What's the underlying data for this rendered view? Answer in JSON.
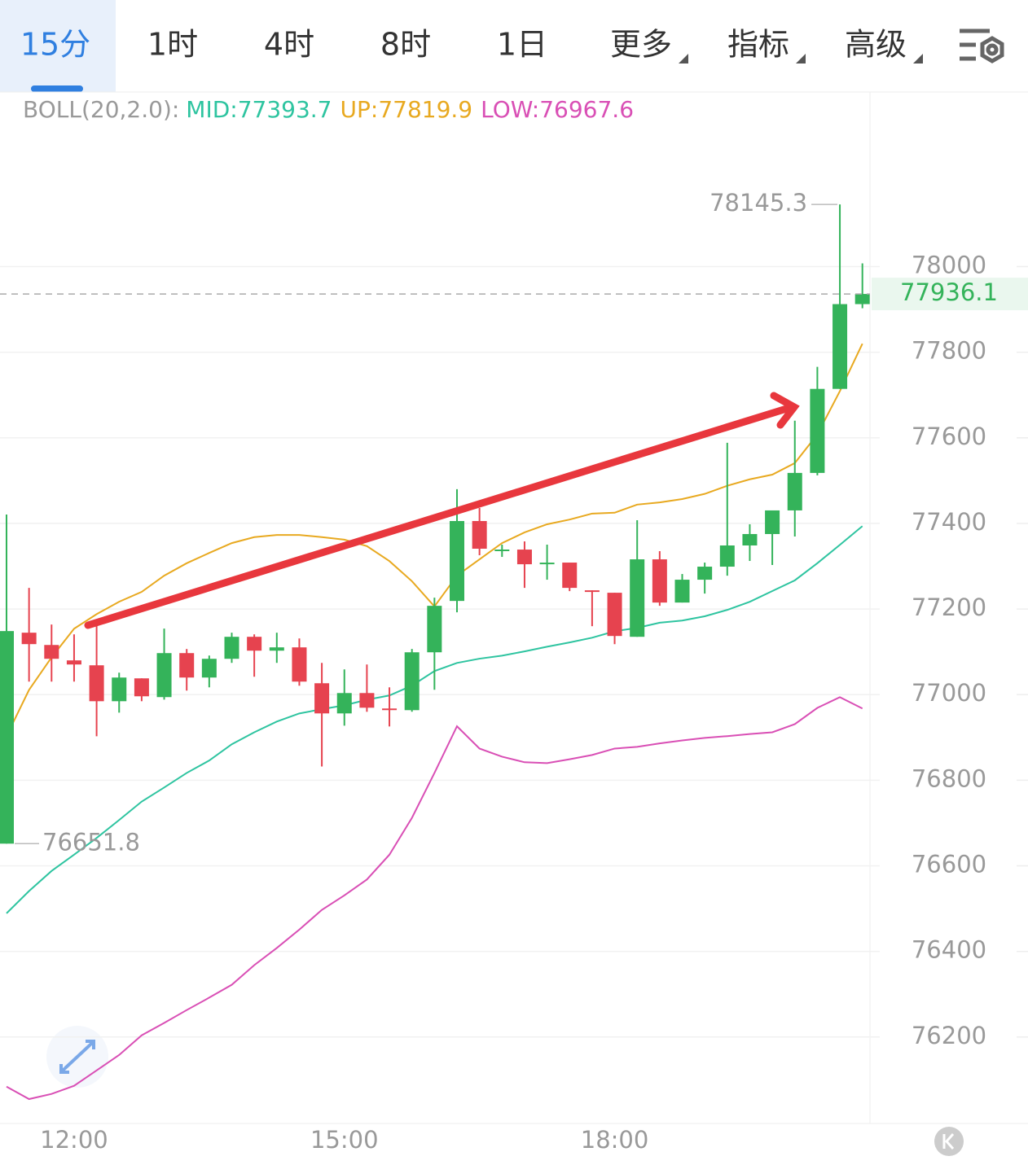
{
  "tabs": [
    "15分",
    "1时",
    "4时",
    "8时",
    "1日",
    "更多",
    "指标",
    "高级"
  ],
  "chart_data": {
    "type": "candlestick",
    "indicator_label": "BOLL(20,2.0):",
    "categories": [
      null,
      null,
      null,
      "12:00",
      null,
      null,
      null,
      null,
      null,
      null,
      null,
      null,
      null,
      null,
      null,
      "15:00",
      null,
      null,
      null,
      null,
      null,
      null,
      null,
      null,
      null,
      null,
      null,
      "18:00",
      null,
      null,
      null,
      null,
      null,
      null,
      null,
      null,
      null,
      null,
      null
    ],
    "open": [
      76651.8,
      77144.7,
      77116.0,
      77080.0,
      77068.5,
      76984.6,
      77038.0,
      76994.2,
      77097.0,
      77039.9,
      77083.7,
      77135.1,
      77102.7,
      77110.4,
      77026.6,
      76956.1,
      77003.7,
      76967.6,
      76963.7,
      77098.9,
      77218.9,
      77405.6,
      77337.0,
      77338.9,
      77306.5,
      77308.5,
      77243.7,
      77238.0,
      77135.1,
      77316.1,
      77215.1,
      77268.5,
      77299.0,
      77348.5,
      77375.2,
      77430.4,
      77518.0,
      77714.3,
      77912.4
    ],
    "high": [
      77420.9,
      77249.4,
      77163.7,
      77140.8,
      77163.7,
      77051.3,
      77038.0,
      77154.2,
      77106.6,
      77091.3,
      77144.7,
      77140.8,
      77144.7,
      77131.3,
      77074.2,
      77058.9,
      77070.4,
      77017.0,
      77106.6,
      77226.6,
      77479.9,
      77436.1,
      77350.4,
      77358.0,
      77350.4,
      77308.5,
      77243.7,
      77238.0,
      77407.5,
      77335.2,
      77281.8,
      77308.5,
      77588.5,
      77398.0,
      77430.4,
      77640.0,
      77765.7,
      78145.3,
      78007.6
    ],
    "low": [
      76651.8,
      77030.4,
      77030.4,
      77030.4,
      76902.7,
      76957.9,
      76984.6,
      76988.4,
      77009.4,
      77017.0,
      77074.2,
      77041.8,
      77074.2,
      77020.8,
      76832.2,
      76927.5,
      76959.9,
      76925.6,
      76959.9,
      77011.3,
      77192.3,
      77325.6,
      77321.8,
      77249.4,
      77268.5,
      77241.8,
      77159.9,
      77117.9,
      77135.1,
      77207.5,
      77215.1,
      77236.1,
      77278.0,
      77312.3,
      77302.8,
      77369.4,
      77512.3,
      77714.3,
      77902.8
    ],
    "close": [
      77148.5,
      77118.0,
      77083.7,
      77070.4,
      76984.6,
      77039.9,
      76996.1,
      77097.0,
      77039.9,
      77083.7,
      77135.1,
      77102.7,
      77110.4,
      77030.4,
      76956.1,
      77003.7,
      76969.4,
      76965.7,
      77098.9,
      77207.5,
      77405.6,
      77340.9,
      77339.0,
      77304.6,
      77308.4,
      77249.4,
      77239.9,
      77137.0,
      77316.1,
      77215.1,
      77268.5,
      77299.0,
      77348.5,
      77375.2,
      77430.4,
      77518.0,
      77714.3,
      77912.4,
      77936.1
    ],
    "up_color": "#34b35a",
    "down_color": "#e6434f",
    "lines": [
      {
        "label": "MID:77393.7",
        "color": "#2ec4a0",
        "values": [
          76489,
          76541,
          76588,
          76626,
          76665,
          76707,
          76750,
          76783,
          76817,
          76846,
          76884,
          76912,
          76937,
          76956,
          76966,
          76975,
          76988,
          76998,
          77021,
          77055,
          77074,
          77084,
          77091,
          77101,
          77112,
          77122,
          77133,
          77148,
          77156,
          77168,
          77173,
          77183,
          77198,
          77217,
          77242,
          77267,
          77307,
          77350,
          77393.7
        ]
      },
      {
        "label": "UP:77819.9",
        "color": "#e8a920",
        "values": [
          76903,
          77011,
          77087,
          77154,
          77188,
          77217,
          77240,
          77278,
          77307,
          77331,
          77354,
          77368,
          77373,
          77373,
          77368,
          77362,
          77347,
          77312,
          77265,
          77206,
          77278,
          77316,
          77354,
          77379,
          77398,
          77409,
          77423,
          77425,
          77444,
          77449,
          77457,
          77469,
          77488,
          77503,
          77514,
          77541,
          77608,
          77709,
          77819.9
        ]
      },
      {
        "label": "LOW:76967.6",
        "color": "#d94fb5",
        "values": [
          76084,
          76055,
          76067,
          76086,
          76122,
          76158,
          76204,
          76233,
          76263,
          76292,
          76322,
          76368,
          76408,
          76451,
          76497,
          76531,
          76568,
          76626,
          76712,
          76817,
          76926,
          76874,
          76855,
          76842,
          76840,
          76849,
          76859,
          76874,
          76878,
          76886,
          76893,
          76899,
          76903,
          76908,
          76912,
          76931,
          76969,
          76994,
          76967.6
        ]
      }
    ],
    "ylim": [
      75998,
      78408
    ],
    "yticks": [
      76200,
      76400,
      76600,
      76800,
      77000,
      77200,
      77400,
      77600,
      77800,
      78000
    ],
    "max_label": 78145.3,
    "min_label": 76651.8,
    "last_price": 77936.1,
    "grid": true
  }
}
